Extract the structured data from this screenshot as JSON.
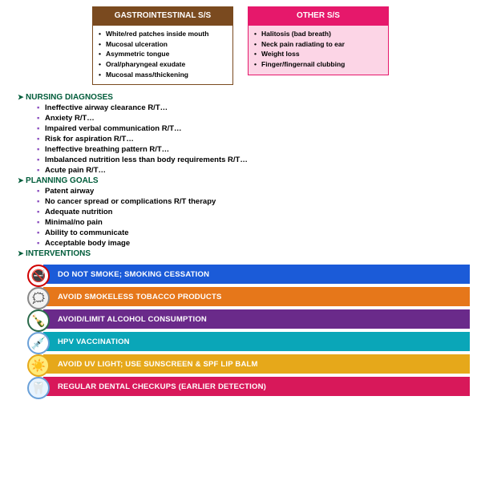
{
  "box_gi": {
    "title": "GASTROINTESTINAL S/S",
    "items": [
      "White/red patches inside mouth",
      "Mucosal ulceration",
      "Asymmetric tongue",
      "Oral/pharyngeal exudate",
      "Mucosal mass/thickening"
    ]
  },
  "box_other": {
    "title": "OTHER S/S",
    "items": [
      "Halitosis (bad breath)",
      "Neck pain radiating to ear",
      "Weight loss",
      "Finger/fingernail clubbing"
    ]
  },
  "sections": [
    {
      "title": "NURSING DIAGNOSES",
      "items": [
        "Ineffective airway clearance R/T…",
        "Anxiety R/T…",
        "Impaired verbal communication R/T…",
        "Risk for aspiration R/T…",
        "Ineffective breathing pattern R/T…",
        "Imbalanced nutrition less than body requirements R/T…",
        "Acute pain R/T…"
      ]
    },
    {
      "title": "PLANNING GOALS",
      "items": [
        "Patent airway",
        "No cancer spread or complications R/T therapy",
        "Adequate nutrition",
        "Minimal/no pain",
        "Ability to communicate",
        "Acceptable body image"
      ]
    },
    {
      "title": "INTERVENTIONS",
      "items": []
    }
  ],
  "bars": [
    {
      "label": "DO NOT SMOKE; SMOKING CESSATION",
      "bg": "#1b5bd8",
      "icon": "🚭",
      "iconBg": "#ffffff",
      "iconBorder": "#d00000"
    },
    {
      "label": "AVOID SMOKELESS TOBACCO PRODUCTS",
      "bg": "#e6771a",
      "icon": "🗯",
      "iconBg": "#f2f2f2",
      "iconBorder": "#888"
    },
    {
      "label": "AVOID/LIMIT ALCOHOL CONSUMPTION",
      "bg": "#6a2a8a",
      "icon": "🍾",
      "iconBg": "#ffffff",
      "iconBorder": "#2a6a4a"
    },
    {
      "label": "HPV VACCINATION",
      "bg": "#0aa6b8",
      "icon": "💉",
      "iconBg": "#ffffff",
      "iconBorder": "#6aa0d8"
    },
    {
      "label": "AVOID UV LIGHT; USE SUNSCREEN & SPF LIP BALM",
      "bg": "#e6a81a",
      "icon": "☀️",
      "iconBg": "#ffeb7a",
      "iconBorder": "#e6a81a"
    },
    {
      "label": "REGULAR DENTAL CHECKUPS (EARLIER DETECTION)",
      "bg": "#d8185a",
      "icon": "🦷",
      "iconBg": "#e8f4ff",
      "iconBorder": "#6aa0d8"
    }
  ]
}
